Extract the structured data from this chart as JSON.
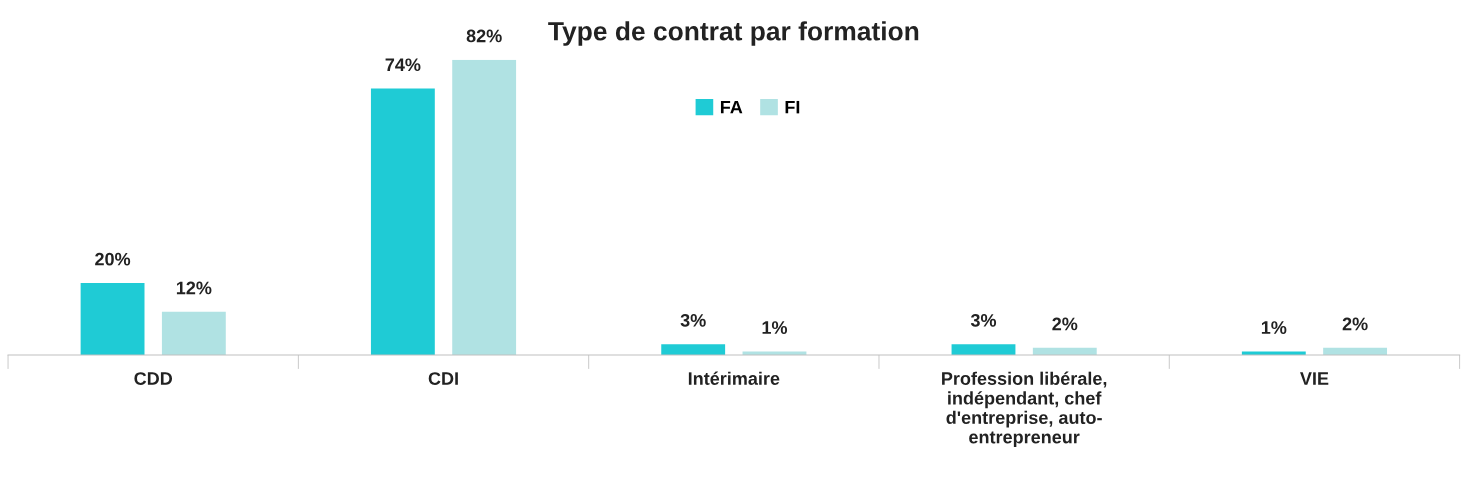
{
  "chart_data": {
    "type": "bar",
    "title": "Type de contrat par formation",
    "categories": [
      "CDD",
      "CDI",
      "Intérimaire",
      "Profession libérale, indépendant, chef d'entreprise, auto-entrepreneur",
      "VIE"
    ],
    "series": [
      {
        "name": "FA",
        "color": "#1fcbd5",
        "values": [
          20,
          74,
          3,
          3,
          1
        ],
        "value_labels": [
          "20%",
          "74%",
          "3%",
          "3%",
          "1%"
        ]
      },
      {
        "name": "FI",
        "color": "#b0e2e3",
        "values": [
          12,
          82,
          1,
          2,
          2
        ],
        "value_labels": [
          "12%",
          "82%",
          "1%",
          "2%",
          "2%"
        ]
      }
    ],
    "legend": "top",
    "grid": false
  }
}
